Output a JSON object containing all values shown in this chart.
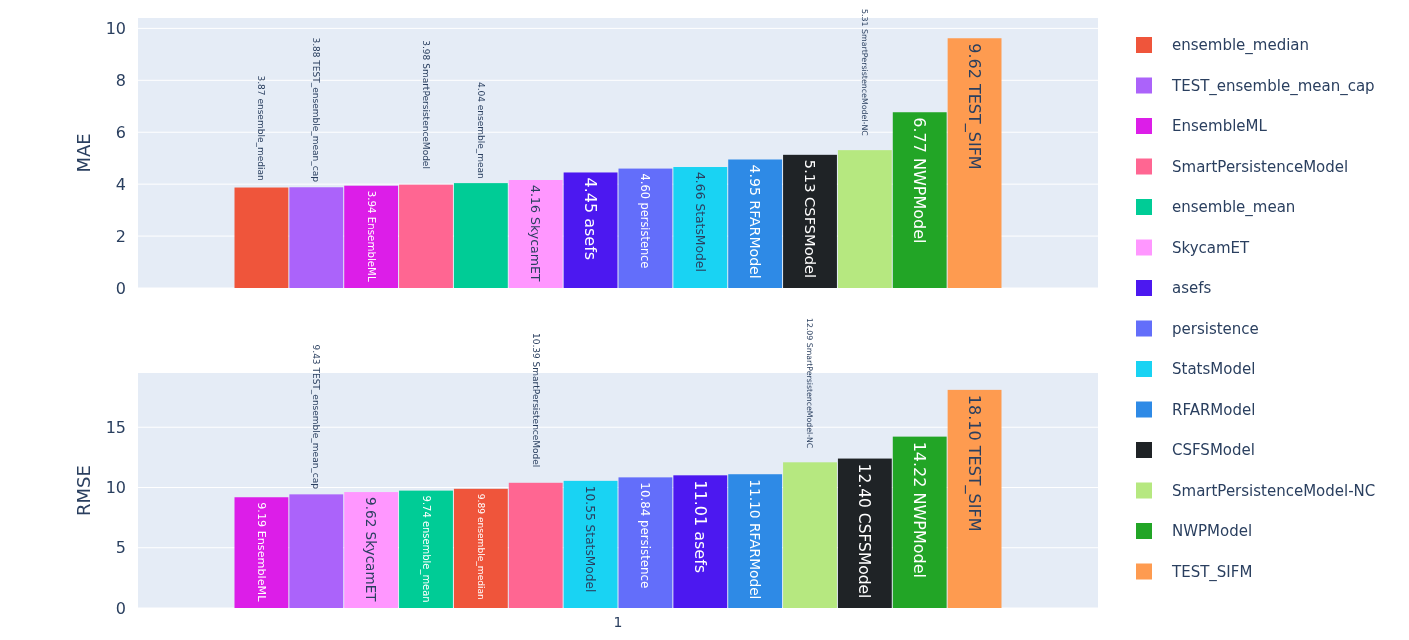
{
  "chart_data": [
    {
      "type": "bar",
      "ylabel": "MAE",
      "categories": [
        null
      ],
      "ylim": [
        0,
        10.4
      ],
      "yticks": [
        0,
        2,
        4,
        6,
        8,
        10
      ],
      "grid": "y",
      "legend": "right",
      "series": [
        {
          "name": "ensemble_median",
          "color": "#ef553b",
          "values": [
            3.87
          ],
          "value_labels": [
            "3.87"
          ]
        },
        {
          "name": "TEST_ensemble_mean_cap",
          "color": "#ab63fa",
          "values": [
            3.88
          ],
          "value_labels": [
            "3.88"
          ]
        },
        {
          "name": "EnsembleML",
          "color": "#dc1ee8",
          "values": [
            3.94
          ],
          "value_labels": [
            "3.94"
          ]
        },
        {
          "name": "SmartPersistenceModel",
          "color": "#ff6692",
          "values": [
            3.98
          ],
          "value_labels": [
            "3.98"
          ]
        },
        {
          "name": "ensemble_mean",
          "color": "#00cc96",
          "values": [
            4.04
          ],
          "value_labels": [
            "4.04"
          ]
        },
        {
          "name": "SkycamET",
          "color": "#ff97ff",
          "values": [
            4.16
          ],
          "value_labels": [
            "4.16"
          ]
        },
        {
          "name": "asefs",
          "color": "#4c18f0",
          "values": [
            4.45
          ],
          "value_labels": [
            "4.45"
          ]
        },
        {
          "name": "persistence",
          "color": "#636efa",
          "values": [
            4.6
          ],
          "value_labels": [
            "4.60"
          ]
        },
        {
          "name": "StatsModel",
          "color": "#19d3f3",
          "values": [
            4.66
          ],
          "value_labels": [
            "4.66"
          ]
        },
        {
          "name": "RFARModel",
          "color": "#2e8ae6",
          "values": [
            4.95
          ],
          "value_labels": [
            "4.95"
          ]
        },
        {
          "name": "CSFSModel",
          "color": "#1f2326",
          "values": [
            5.13
          ],
          "value_labels": [
            "5.13"
          ]
        },
        {
          "name": "SmartPersistenceModel-NC",
          "color": "#b6e880",
          "values": [
            5.31
          ],
          "value_labels": [
            "5.31"
          ]
        },
        {
          "name": "NWPModel",
          "color": "#22a526",
          "values": [
            6.77
          ],
          "value_labels": [
            "6.77"
          ]
        },
        {
          "name": "TEST_SIFM",
          "color": "#fe9b50",
          "values": [
            9.62
          ],
          "value_labels": [
            "9.62"
          ]
        }
      ]
    },
    {
      "type": "bar",
      "ylabel": "RMSE",
      "categories": [
        "1"
      ],
      "ylim": [
        0,
        19.5
      ],
      "yticks": [
        0,
        5,
        10,
        15
      ],
      "grid": "y",
      "series": [
        {
          "name": "EnsembleML",
          "color": "#dc1ee8",
          "values": [
            9.19
          ],
          "value_labels": [
            "9.19"
          ]
        },
        {
          "name": "TEST_ensemble_mean_cap",
          "color": "#ab63fa",
          "values": [
            9.43
          ],
          "value_labels": [
            "9.43"
          ]
        },
        {
          "name": "SkycamET",
          "color": "#ff97ff",
          "values": [
            9.62
          ],
          "value_labels": [
            "9.62"
          ]
        },
        {
          "name": "ensemble_mean",
          "color": "#00cc96",
          "values": [
            9.74
          ],
          "value_labels": [
            "9.74"
          ]
        },
        {
          "name": "ensemble_median",
          "color": "#ef553b",
          "values": [
            9.89
          ],
          "value_labels": [
            "9.89"
          ]
        },
        {
          "name": "SmartPersistenceModel",
          "color": "#ff6692",
          "values": [
            10.39
          ],
          "value_labels": [
            "10.39"
          ]
        },
        {
          "name": "StatsModel",
          "color": "#19d3f3",
          "values": [
            10.55
          ],
          "value_labels": [
            "10.55"
          ]
        },
        {
          "name": "persistence",
          "color": "#636efa",
          "values": [
            10.84
          ],
          "value_labels": [
            "10.84"
          ]
        },
        {
          "name": "asefs",
          "color": "#4c18f0",
          "values": [
            11.01
          ],
          "value_labels": [
            "11.01"
          ]
        },
        {
          "name": "RFARModel",
          "color": "#2e8ae6",
          "values": [
            11.1
          ],
          "value_labels": [
            "11.10"
          ]
        },
        {
          "name": "SmartPersistenceModel-NC",
          "color": "#b6e880",
          "values": [
            12.09
          ],
          "value_labels": [
            "12.09"
          ]
        },
        {
          "name": "CSFSModel",
          "color": "#1f2326",
          "values": [
            12.4
          ],
          "value_labels": [
            "12.40"
          ]
        },
        {
          "name": "NWPModel",
          "color": "#22a526",
          "values": [
            14.22
          ],
          "value_labels": [
            "14.22"
          ]
        },
        {
          "name": "TEST_SIFM",
          "color": "#fe9b50",
          "values": [
            18.1
          ],
          "value_labels": [
            "18.10"
          ]
        }
      ]
    }
  ]
}
